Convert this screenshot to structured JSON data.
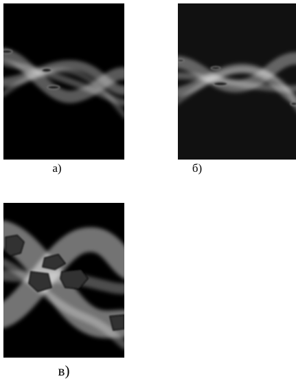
{
  "figure": {
    "panels": [
      {
        "label": "а)"
      },
      {
        "label": "б)"
      },
      {
        "label": "в)"
      }
    ]
  }
}
